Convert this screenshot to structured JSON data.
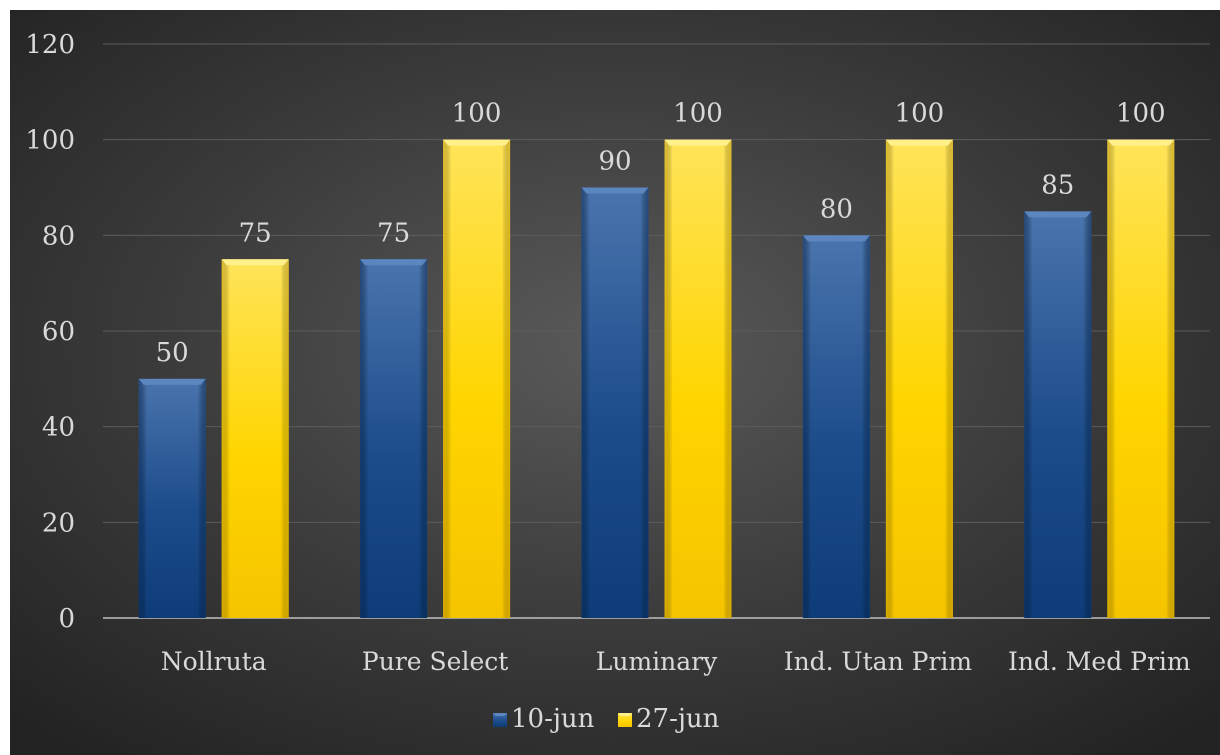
{
  "chart_data": {
    "type": "bar",
    "categories": [
      "Nollruta",
      "Pure Select",
      "Luminary",
      "Ind. Utan Prim",
      "Ind. Med Prim"
    ],
    "series": [
      {
        "name": "10-jun",
        "values": [
          50,
          75,
          90,
          80,
          85
        ],
        "color": "#1f4e8c"
      },
      {
        "name": "27-jun",
        "values": [
          75,
          100,
          100,
          100,
          100
        ],
        "color": "#ffd000"
      }
    ],
    "ylim": [
      0,
      120
    ],
    "yticks": [
      0,
      20,
      40,
      60,
      80,
      100,
      120
    ],
    "grid": true,
    "legend_position": "bottom",
    "data_labels": true,
    "background": "#3a3a3a"
  }
}
